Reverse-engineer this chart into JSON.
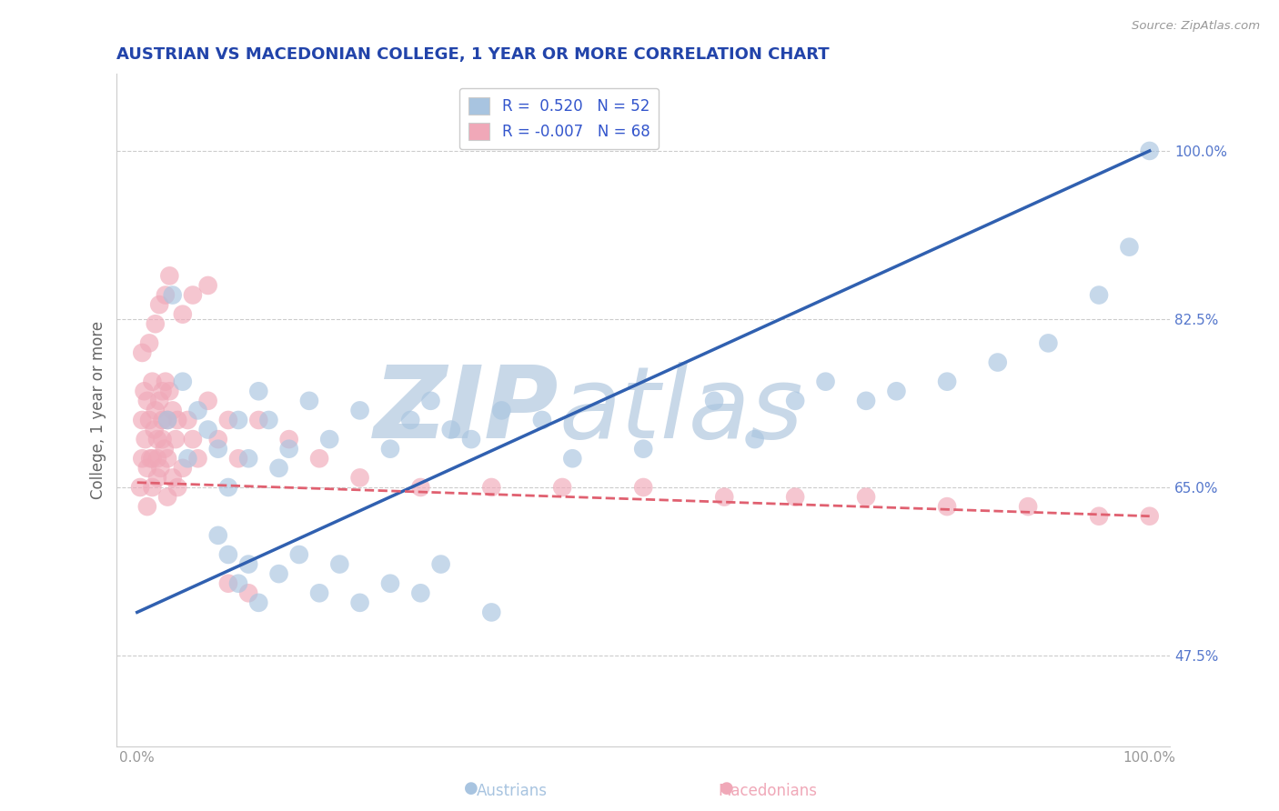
{
  "title": "AUSTRIAN VS MACEDONIAN COLLEGE, 1 YEAR OR MORE CORRELATION CHART",
  "source_text": "Source: ZipAtlas.com",
  "ylabel": "College, 1 year or more",
  "y_tick_positions": [
    47.5,
    65.0,
    82.5,
    100.0
  ],
  "y_tick_labels": [
    "47.5%",
    "65.0%",
    "82.5%",
    "100.0%"
  ],
  "austrians_color": "#a8c4e0",
  "macedonians_color": "#f0a8b8",
  "austrians_line_color": "#3060b0",
  "macedonians_line_color": "#e06070",
  "watermark_zip": "ZIP",
  "watermark_atlas": "atlas",
  "watermark_color": "#c8d8e8",
  "background_color": "#ffffff",
  "legend_x_labels": [
    "Austrians",
    "Macedonians"
  ],
  "austrians_x": [
    3.0,
    3.5,
    4.5,
    5.0,
    6.0,
    7.0,
    8.0,
    9.0,
    10.0,
    11.0,
    12.0,
    13.0,
    14.0,
    15.0,
    17.0,
    19.0,
    22.0,
    25.0,
    27.0,
    29.0,
    31.0,
    33.0,
    36.0,
    40.0,
    43.0,
    50.0,
    57.0,
    61.0,
    65.0,
    68.0,
    72.0,
    75.0,
    80.0,
    85.0,
    90.0,
    95.0,
    98.0,
    100.0,
    8.0,
    9.0,
    10.0,
    11.0,
    12.0,
    14.0,
    16.0,
    18.0,
    20.0,
    22.0,
    25.0,
    28.0,
    30.0,
    35.0
  ],
  "austrians_y": [
    72.0,
    85.0,
    76.0,
    68.0,
    73.0,
    71.0,
    69.0,
    65.0,
    72.0,
    68.0,
    75.0,
    72.0,
    67.0,
    69.0,
    74.0,
    70.0,
    73.0,
    69.0,
    72.0,
    74.0,
    71.0,
    70.0,
    73.0,
    72.0,
    68.0,
    69.0,
    74.0,
    70.0,
    74.0,
    76.0,
    74.0,
    75.0,
    76.0,
    78.0,
    80.0,
    85.0,
    90.0,
    100.0,
    60.0,
    58.0,
    55.0,
    57.0,
    53.0,
    56.0,
    58.0,
    54.0,
    57.0,
    53.0,
    55.0,
    54.0,
    57.0,
    52.0
  ],
  "macedonians_x": [
    0.3,
    0.5,
    0.5,
    0.7,
    0.8,
    1.0,
    1.0,
    1.2,
    1.3,
    1.5,
    1.5,
    1.7,
    1.8,
    2.0,
    2.0,
    2.2,
    2.3,
    2.5,
    2.5,
    2.7,
    2.8,
    3.0,
    3.0,
    3.2,
    3.5,
    3.8,
    4.0,
    4.5,
    5.0,
    5.5,
    6.0,
    7.0,
    8.0,
    9.0,
    10.0,
    12.0,
    15.0,
    18.0,
    22.0,
    28.0,
    35.0,
    42.0,
    50.0,
    58.0,
    65.0,
    72.0,
    80.0,
    88.0,
    95.0,
    100.0,
    1.0,
    1.5,
    2.0,
    2.5,
    3.0,
    3.5,
    4.0,
    0.5,
    1.2,
    1.8,
    2.2,
    2.8,
    3.2,
    4.5,
    5.5,
    7.0,
    9.0,
    11.0
  ],
  "macedonians_y": [
    65.0,
    72.0,
    68.0,
    75.0,
    70.0,
    74.0,
    67.0,
    72.0,
    68.0,
    76.0,
    65.0,
    71.0,
    73.0,
    70.0,
    68.0,
    74.0,
    67.0,
    75.0,
    72.0,
    69.0,
    76.0,
    72.0,
    68.0,
    75.0,
    73.0,
    70.0,
    72.0,
    67.0,
    72.0,
    70.0,
    68.0,
    74.0,
    70.0,
    72.0,
    68.0,
    72.0,
    70.0,
    68.0,
    66.0,
    65.0,
    65.0,
    65.0,
    65.0,
    64.0,
    64.0,
    64.0,
    63.0,
    63.0,
    62.0,
    62.0,
    63.0,
    68.0,
    66.0,
    70.0,
    64.0,
    66.0,
    65.0,
    79.0,
    80.0,
    82.0,
    84.0,
    85.0,
    87.0,
    83.0,
    85.0,
    86.0,
    55.0,
    54.0
  ],
  "xlim": [
    -2,
    102
  ],
  "ylim": [
    38,
    108
  ],
  "austrians_line_x0": 0,
  "austrians_line_y0": 52.0,
  "austrians_line_x1": 100,
  "austrians_line_y1": 100.0,
  "macedonians_line_x0": 0,
  "macedonians_line_y0": 65.5,
  "macedonians_line_x1": 100,
  "macedonians_line_y1": 62.0
}
